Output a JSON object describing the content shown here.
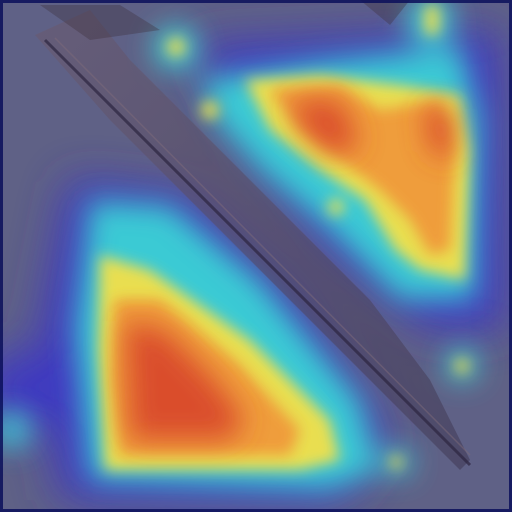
{
  "image": {
    "kind": "heatmap-overlay",
    "colormap": [
      "#2b2ab0",
      "#39d1d8",
      "#f2e14a",
      "#f1a13a",
      "#d9472a"
    ],
    "background": "#5d5f84"
  }
}
